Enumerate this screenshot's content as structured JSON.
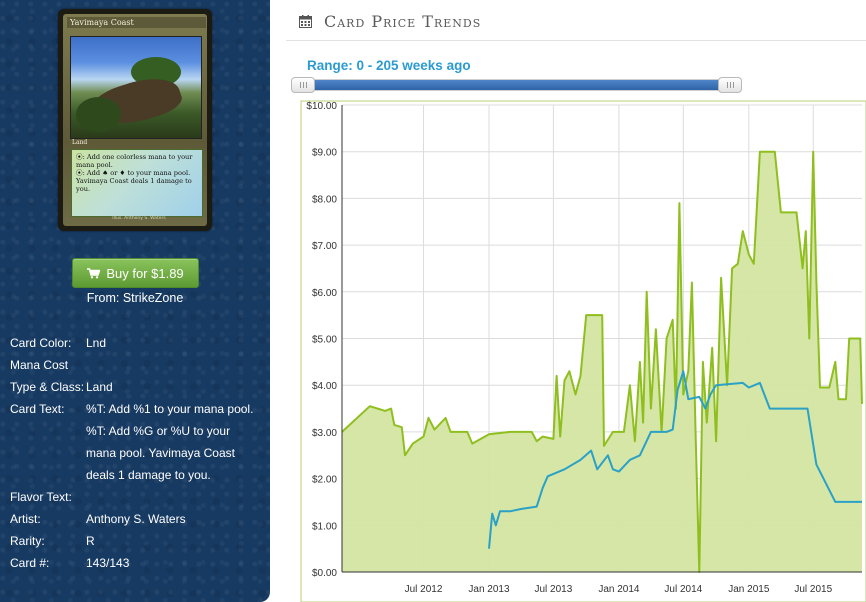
{
  "card": {
    "name": "Yavimaya Coast",
    "type_line": "Land",
    "text_line1": "⦿: Add one colorless mana to your mana pool.",
    "text_line2": "⦿: Add ♠ or ♦ to your mana pool. Yavimaya Coast deals 1 damage to you.",
    "footer": "Illus. Anthony S. Waters"
  },
  "buy": {
    "label": "Buy for $1.89",
    "from": "From: StrikeZone"
  },
  "info": {
    "color_label": "Card Color:",
    "color_value": "Lnd",
    "mana_label": "Mana Cost",
    "mana_value": "",
    "type_label": "Type & Class:",
    "type_value": "Land",
    "text_label": "Card Text:",
    "text_value1": "%T: Add %1 to your mana pool.",
    "text_value2": "%T: Add %G or %U to your",
    "text_value3": "mana pool. Yavimaya Coast",
    "text_value4": "deals 1 damage to you.",
    "flavor_label": "Flavor Text:",
    "flavor_value": "",
    "artist_label": "Artist:",
    "artist_value": "Anthony S. Waters",
    "rarity_label": "Rarity:",
    "rarity_value": "R",
    "number_label": "Card #:",
    "number_value": "143/143"
  },
  "panel": {
    "title": "Card Price Trends",
    "icon": "calendar-icon"
  },
  "range": {
    "label": "Range: 0 - 205 weeks ago",
    "min": 0,
    "max": 205
  },
  "colors": {
    "sidebar": "#173a62",
    "buy_button": "#6aa83f",
    "range_text": "#2b9bd1",
    "series_high": "#8fbf1f",
    "series_low": "#2aa1c6",
    "fill": "#d3e5a2"
  },
  "chart_data": {
    "type": "area",
    "title": "",
    "xlabel": "",
    "ylabel": "",
    "xlim": [
      "2011-11-15",
      "2015-11-15"
    ],
    "ylim": [
      0,
      10
    ],
    "yticks": [
      "$0.00",
      "$1.00",
      "$2.00",
      "$3.00",
      "$4.00",
      "$5.00",
      "$6.00",
      "$7.00",
      "$8.00",
      "$9.00",
      "$10.00"
    ],
    "xticks": [
      {
        "label": "Jul 2012",
        "date": "2012-07-01"
      },
      {
        "label": "Jan 2013",
        "date": "2013-01-01"
      },
      {
        "label": "Jul 2013",
        "date": "2013-07-01"
      },
      {
        "label": "Jan 2014",
        "date": "2014-01-01"
      },
      {
        "label": "Jul 2014",
        "date": "2014-07-01"
      },
      {
        "label": "Jan 2015",
        "date": "2015-01-01"
      },
      {
        "label": "Jul 2015",
        "date": "2015-07-01"
      }
    ],
    "grid": true,
    "series": [
      {
        "points": [
          [
            "2011-11-15",
            3.0
          ],
          [
            "2012-02-01",
            3.55
          ],
          [
            "2012-03-15",
            3.45
          ],
          [
            "2012-04-01",
            3.5
          ],
          [
            "2012-04-10",
            3.15
          ],
          [
            "2012-05-01",
            3.1
          ],
          [
            "2012-05-10",
            2.5
          ],
          [
            "2012-06-01",
            2.75
          ],
          [
            "2012-07-01",
            2.9
          ],
          [
            "2012-07-15",
            3.3
          ],
          [
            "2012-08-01",
            3.05
          ],
          [
            "2012-09-01",
            3.3
          ],
          [
            "2012-09-15",
            3.0
          ],
          [
            "2012-11-01",
            3.0
          ],
          [
            "2012-11-15",
            2.75
          ],
          [
            "2013-01-01",
            2.95
          ],
          [
            "2013-03-01",
            3.0
          ],
          [
            "2013-05-01",
            3.0
          ],
          [
            "2013-05-15",
            2.8
          ],
          [
            "2013-06-01",
            2.9
          ],
          [
            "2013-07-01",
            2.85
          ],
          [
            "2013-07-10",
            4.2
          ],
          [
            "2013-07-20",
            2.9
          ],
          [
            "2013-08-01",
            4.1
          ],
          [
            "2013-08-15",
            4.3
          ],
          [
            "2013-09-01",
            3.8
          ],
          [
            "2013-09-15",
            4.2
          ],
          [
            "2013-10-01",
            5.5
          ],
          [
            "2013-11-15",
            5.5
          ],
          [
            "2013-11-20",
            2.7
          ],
          [
            "2013-12-15",
            3.0
          ],
          [
            "2014-01-15",
            3.0
          ],
          [
            "2014-02-01",
            4.0
          ],
          [
            "2014-02-15",
            2.8
          ],
          [
            "2014-03-01",
            4.5
          ],
          [
            "2014-03-10",
            3.2
          ],
          [
            "2014-03-20",
            6.0
          ],
          [
            "2014-04-01",
            3.5
          ],
          [
            "2014-04-15",
            5.2
          ],
          [
            "2014-05-01",
            3.0
          ],
          [
            "2014-05-15",
            5.0
          ],
          [
            "2014-06-01",
            5.4
          ],
          [
            "2014-06-10",
            3.5
          ],
          [
            "2014-06-20",
            7.9
          ],
          [
            "2014-07-01",
            3.8
          ],
          [
            "2014-07-15",
            4.3
          ],
          [
            "2014-07-25",
            6.2
          ],
          [
            "2014-08-05",
            2.8
          ],
          [
            "2014-08-15",
            0.0
          ],
          [
            "2014-08-25",
            4.5
          ],
          [
            "2014-09-05",
            3.2
          ],
          [
            "2014-09-20",
            4.8
          ],
          [
            "2014-10-01",
            2.8
          ],
          [
            "2014-10-15",
            6.3
          ],
          [
            "2014-11-01",
            4.0
          ],
          [
            "2014-11-15",
            6.5
          ],
          [
            "2014-12-01",
            6.6
          ],
          [
            "2014-12-15",
            7.3
          ],
          [
            "2015-01-01",
            6.8
          ],
          [
            "2015-01-15",
            6.6
          ],
          [
            "2015-02-01",
            9.0
          ],
          [
            "2015-03-15",
            9.0
          ],
          [
            "2015-04-01",
            7.7
          ],
          [
            "2015-05-15",
            7.7
          ],
          [
            "2015-06-01",
            6.5
          ],
          [
            "2015-06-10",
            7.3
          ],
          [
            "2015-06-20",
            5.0
          ],
          [
            "2015-07-01",
            9.0
          ],
          [
            "2015-07-10",
            6.2
          ],
          [
            "2015-07-20",
            3.95
          ],
          [
            "2015-08-15",
            3.95
          ],
          [
            "2015-09-01",
            4.5
          ],
          [
            "2015-09-10",
            3.7
          ],
          [
            "2015-10-01",
            3.7
          ],
          [
            "2015-10-10",
            5.0
          ],
          [
            "2015-11-10",
            5.0
          ],
          [
            "2015-11-15",
            3.6
          ]
        ]
      },
      {
        "points": [
          [
            "2013-01-01",
            0.5
          ],
          [
            "2013-01-10",
            1.25
          ],
          [
            "2013-01-20",
            1.0
          ],
          [
            "2013-02-01",
            1.3
          ],
          [
            "2013-03-01",
            1.3
          ],
          [
            "2013-04-01",
            1.35
          ],
          [
            "2013-05-15",
            1.4
          ],
          [
            "2013-06-01",
            1.8
          ],
          [
            "2013-06-15",
            2.05
          ],
          [
            "2013-08-01",
            2.2
          ],
          [
            "2013-09-15",
            2.4
          ],
          [
            "2013-10-15",
            2.6
          ],
          [
            "2013-11-01",
            2.2
          ],
          [
            "2013-12-01",
            2.5
          ],
          [
            "2013-12-15",
            2.2
          ],
          [
            "2014-01-01",
            2.15
          ],
          [
            "2014-02-01",
            2.4
          ],
          [
            "2014-03-01",
            2.5
          ],
          [
            "2014-04-01",
            3.0
          ],
          [
            "2014-05-15",
            3.0
          ],
          [
            "2014-06-01",
            3.05
          ],
          [
            "2014-06-15",
            3.9
          ],
          [
            "2014-07-01",
            4.3
          ],
          [
            "2014-07-15",
            3.7
          ],
          [
            "2014-08-15",
            3.75
          ],
          [
            "2014-09-01",
            3.5
          ],
          [
            "2014-09-15",
            3.8
          ],
          [
            "2014-10-01",
            4.0
          ],
          [
            "2014-12-15",
            4.05
          ],
          [
            "2015-01-01",
            3.95
          ],
          [
            "2015-02-01",
            4.05
          ],
          [
            "2015-03-01",
            3.5
          ],
          [
            "2015-06-15",
            3.5
          ],
          [
            "2015-07-10",
            2.3
          ],
          [
            "2015-09-01",
            1.5
          ],
          [
            "2015-11-15",
            1.5
          ]
        ]
      }
    ]
  }
}
